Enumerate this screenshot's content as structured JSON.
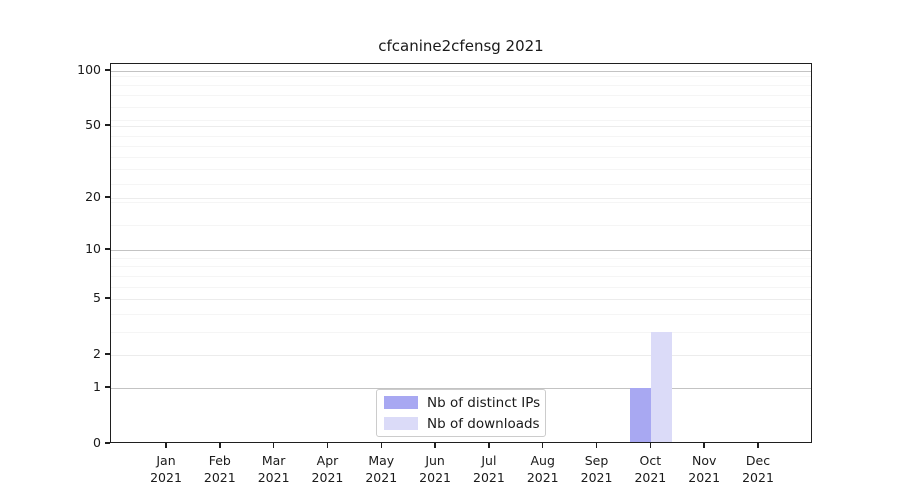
{
  "chart_data": {
    "type": "bar",
    "title": "cfcanine2cfensg 2021",
    "categories": [
      "Jan 2021",
      "Feb 2021",
      "Mar 2021",
      "Apr 2021",
      "May 2021",
      "Jun 2021",
      "Jul 2021",
      "Aug 2021",
      "Sep 2021",
      "Oct 2021",
      "Nov 2021",
      "Dec 2021"
    ],
    "series": [
      {
        "name": "Nb of distinct IPs",
        "color": "#a8a8f2",
        "values": [
          0,
          0,
          0,
          0,
          0,
          0,
          0,
          0,
          0,
          1,
          0,
          0
        ]
      },
      {
        "name": "Nb of downloads",
        "color": "#dbdbf8",
        "values": [
          0,
          0,
          0,
          0,
          0,
          0,
          0,
          0,
          0,
          3,
          0,
          0
        ]
      }
    ],
    "xlabel": "",
    "ylabel": "",
    "yscale": "log1p",
    "ylim": [
      0,
      109
    ],
    "y_ticks": [
      0,
      1,
      2,
      5,
      10,
      20,
      50,
      100
    ],
    "y_emphasized_gridlines": [
      1,
      10,
      100
    ],
    "y_minor_gridlines": [
      3,
      4,
      6,
      7,
      8,
      9,
      14,
      19,
      24,
      29,
      34,
      39,
      44,
      54,
      64,
      74,
      84,
      94
    ],
    "grid": "horizontal",
    "legend": {
      "position": "lower center"
    }
  }
}
